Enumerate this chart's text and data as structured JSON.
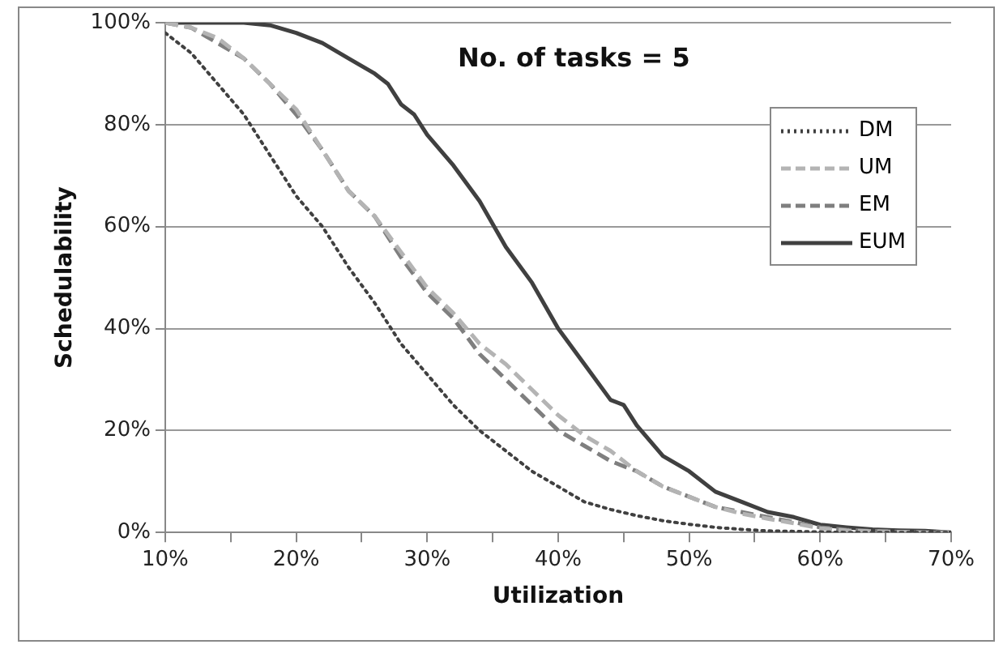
{
  "chart_data": {
    "type": "line",
    "xlabel": "Utilization",
    "ylabel": "Schedulability",
    "annotations": [
      "No. of tasks = 5"
    ],
    "x": [
      10,
      12,
      14,
      16,
      18,
      20,
      22,
      24,
      26,
      28,
      30,
      32,
      34,
      36,
      38,
      40,
      42,
      44,
      46,
      48,
      50,
      52,
      54,
      56,
      58,
      60,
      62,
      64,
      66,
      68,
      70
    ],
    "xlim": [
      10,
      70
    ],
    "xticks": [
      {
        "value": 10,
        "label": "10%"
      },
      {
        "value": 15,
        "label": null
      },
      {
        "value": 20,
        "label": "20%"
      },
      {
        "value": 25,
        "label": null
      },
      {
        "value": 30,
        "label": "30%"
      },
      {
        "value": 35,
        "label": null
      },
      {
        "value": 40,
        "label": "40%"
      },
      {
        "value": 45,
        "label": null
      },
      {
        "value": 50,
        "label": "50%"
      },
      {
        "value": 55,
        "label": null
      },
      {
        "value": 60,
        "label": "60%"
      },
      {
        "value": 65,
        "label": null
      },
      {
        "value": 70,
        "label": "70%"
      }
    ],
    "ylim": [
      0,
      100
    ],
    "yticks": [
      {
        "value": 0,
        "label": "0%"
      },
      {
        "value": 20,
        "label": "20%"
      },
      {
        "value": 40,
        "label": "40%"
      },
      {
        "value": 60,
        "label": "60%"
      },
      {
        "value": 80,
        "label": "80%"
      },
      {
        "value": 100,
        "label": "100%"
      }
    ],
    "grid": "y",
    "legend": "right",
    "marker": "none",
    "series": [
      {
        "name": "DM",
        "color": "#404040",
        "line_style": "dotted",
        "values": [
          98,
          94,
          88,
          82,
          74,
          66,
          60,
          52,
          45,
          37,
          31,
          25,
          20,
          16,
          12,
          9,
          6,
          4.5,
          3.3,
          2.3,
          1.6,
          1,
          0.6,
          0.3,
          0.2,
          0.1,
          0,
          0,
          0,
          0,
          0
        ]
      },
      {
        "name": "UM",
        "color": "#b4b4b4",
        "line_style": "dashed",
        "values": [
          100,
          99,
          97,
          93,
          88,
          83,
          75,
          67,
          62,
          55,
          48,
          43,
          37,
          33,
          28,
          23,
          19,
          16,
          12,
          9,
          7,
          5,
          3.7,
          2.7,
          1.8,
          0.8,
          0.4,
          0.2,
          0.1,
          0,
          0
        ]
      },
      {
        "name": "EM",
        "color": "#7f7f7f",
        "line_style": "dashed",
        "values": [
          100,
          99,
          96,
          93,
          88,
          82,
          75,
          67,
          62,
          54,
          47,
          42,
          35,
          30,
          25,
          20,
          17,
          14,
          12,
          9,
          7,
          5,
          4,
          3,
          2,
          1,
          0.5,
          0.3,
          0.1,
          0,
          0
        ]
      },
      {
        "name": "EUM",
        "color": "#404040",
        "line_style": "solid",
        "x": [
          10,
          12,
          14,
          16,
          18,
          20,
          22,
          24,
          26,
          27,
          28,
          29,
          30,
          32,
          34,
          36,
          38,
          40,
          42,
          44,
          45,
          46,
          48,
          50,
          52,
          54,
          56,
          58,
          60,
          62,
          64,
          66,
          68,
          70
        ],
        "values": [
          100,
          100,
          100,
          100,
          99.5,
          98,
          96,
          93,
          90,
          88,
          84,
          82,
          78,
          72,
          65,
          56,
          49,
          40,
          33,
          26,
          25,
          21,
          15,
          12,
          8,
          6,
          4,
          3,
          1.5,
          1,
          0.6,
          0.4,
          0.3,
          0
        ]
      }
    ]
  }
}
